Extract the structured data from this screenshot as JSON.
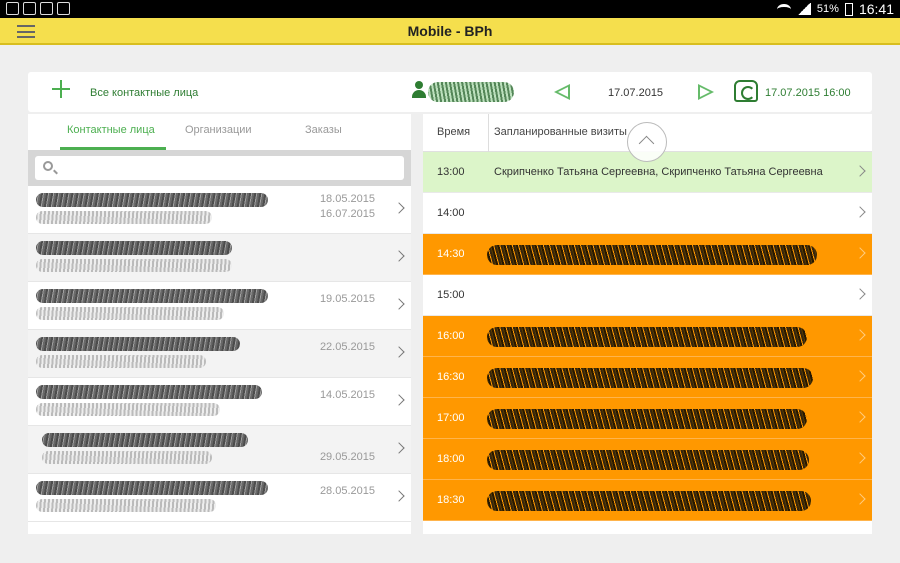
{
  "status_bar": {
    "battery": "51%",
    "time": "16:41"
  },
  "app_bar": {
    "title": "Mobile - BPh"
  },
  "toolbar": {
    "all_contacts_label": "Все контактные лица",
    "date": "17.07.2015",
    "sync_time": "17.07.2015 16:00"
  },
  "left_tabs": [
    {
      "label": "Контактные лица",
      "active": true
    },
    {
      "label": "Организации",
      "active": false
    },
    {
      "label": "Заказы",
      "active": false
    }
  ],
  "search": {
    "value": "",
    "placeholder": ""
  },
  "contacts": [
    {
      "dates": [
        "18.05.2015",
        "16.07.2015"
      ]
    },
    {
      "dates": []
    },
    {
      "dates": [
        "19.05.2015"
      ]
    },
    {
      "dates": [
        "22.05.2015"
      ]
    },
    {
      "dates": [
        "14.05.2015"
      ]
    },
    {
      "dates": [
        "29.05.2015"
      ]
    },
    {
      "dates": [
        "28.05.2015"
      ]
    }
  ],
  "schedule": {
    "col_time": "Время",
    "col_visits": "Запланированные визиты",
    "slots": [
      {
        "time": "13:00",
        "status": "green",
        "visit": "Скрипченко Татьяна Сергеевна, Скрипченко Татьяна Сергеевна"
      },
      {
        "time": "14:00",
        "status": "free",
        "visit": ""
      },
      {
        "time": "14:30",
        "status": "orange",
        "visit": ""
      },
      {
        "time": "15:00",
        "status": "free",
        "visit": ""
      },
      {
        "time": "16:00",
        "status": "orange",
        "visit": ""
      },
      {
        "time": "16:30",
        "status": "orange",
        "visit": ""
      },
      {
        "time": "17:00",
        "status": "orange",
        "visit": ""
      },
      {
        "time": "18:00",
        "status": "orange",
        "visit": ""
      },
      {
        "time": "18:30",
        "status": "orange",
        "visit": ""
      }
    ]
  },
  "colors": {
    "accent_green": "#4caf50",
    "app_bar": "#f5df4d",
    "busy_slot": "#ff9800",
    "current_slot": "#dcf5c9"
  }
}
